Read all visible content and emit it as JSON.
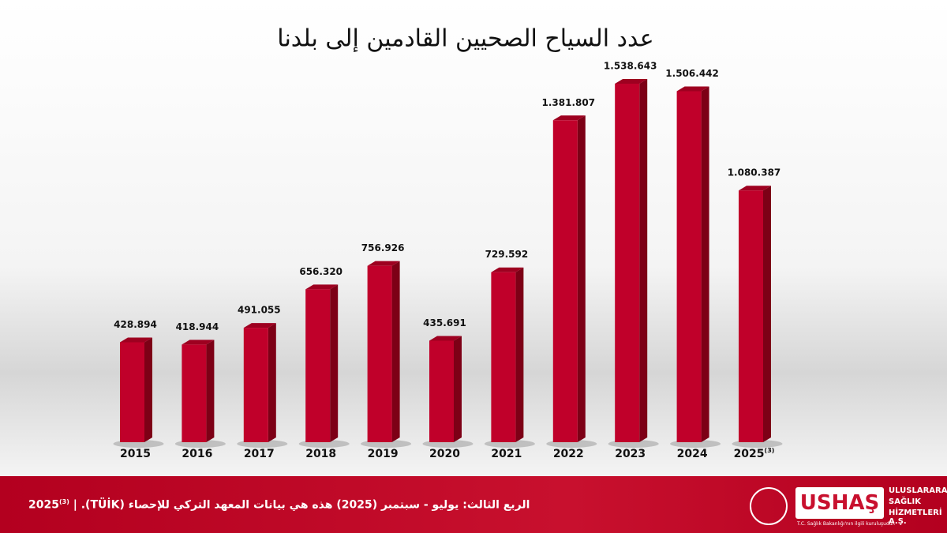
{
  "chart_data": {
    "type": "bar",
    "title": "عدد السياح الصحيين القادمين إلى بلدنا",
    "categories": [
      "2015",
      "2016",
      "2017",
      "2018",
      "2019",
      "2020",
      "2021",
      "2022",
      "2023",
      "2024",
      "2025"
    ],
    "category_footnote": "(3)",
    "values": [
      428894,
      418944,
      491055,
      656320,
      756926,
      435691,
      729592,
      1381807,
      1538643,
      1506442,
      1080387
    ],
    "value_labels": [
      "428.894",
      "418.944",
      "491.055",
      "656.320",
      "756.926",
      "435.691",
      "729.592",
      "1.381.807",
      "1.538.643",
      "1.506.442",
      "1.080.387"
    ],
    "color": "#c0002a"
  },
  "footer": {
    "year": "2025",
    "footnote": "(3)",
    "separator": "|",
    "note": "الربع الثالث: يوليو - سبتمبر (2025) هذه هي بيانات المعهد التركي للإحصاء (TÜİK)."
  },
  "logo": {
    "brand": "USHAŞ",
    "line1": "ULUSLARARASI",
    "line2": "SAĞLIK",
    "line3": "HİZMETLERİ A.Ş.",
    "tagline": "T.C. Sağlık Bakanlığı'nın ilgili kuruluşudur."
  }
}
